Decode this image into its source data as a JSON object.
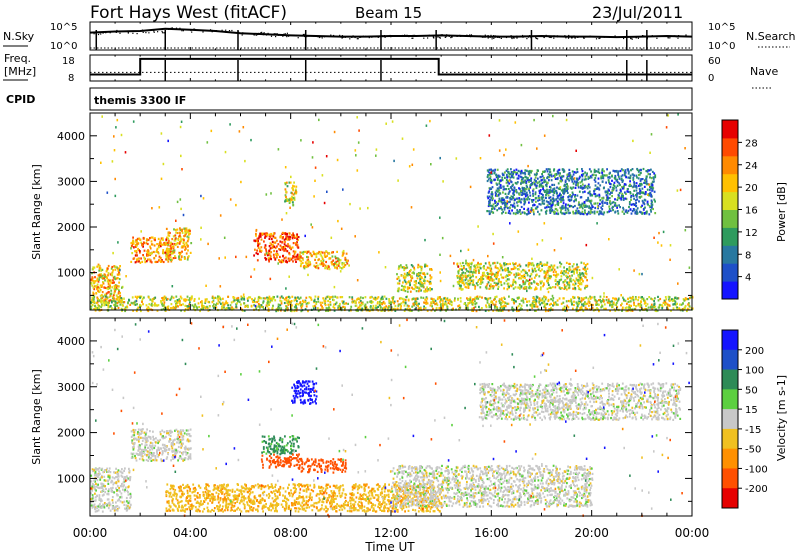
{
  "header": {
    "title": "Fort Hays West (fitACF)",
    "beam": "Beam 15",
    "date": "23/Jul/2011"
  },
  "left_labels": {
    "nsky": "N.Sky",
    "freq_line1": "Freq.",
    "freq_line2": "[MHz]",
    "cpid": "CPID"
  },
  "right_labels": {
    "nsearch": "N.Search",
    "nave": "Nave"
  },
  "cpid_value": "themis 3300 IF",
  "chart_data": [
    {
      "type": "line",
      "panel": "noise",
      "left_ticks": [
        "10^5",
        "10^0"
      ],
      "right_ticks": [
        "10^5",
        "10^0"
      ],
      "x": [
        0,
        1,
        2,
        3,
        4,
        5,
        6,
        7,
        8,
        9,
        10,
        11,
        12,
        13,
        14,
        15,
        16,
        17,
        18,
        19,
        20,
        21,
        22,
        23,
        24
      ],
      "series": [
        {
          "name": "N.Sky",
          "values": [
            3.1,
            3.3,
            3.4,
            3.8,
            3.6,
            3.4,
            3.0,
            2.8,
            2.6,
            2.5,
            2.4,
            2.4,
            2.5,
            2.5,
            2.6,
            2.5,
            2.4,
            2.4,
            2.5,
            2.4,
            2.4,
            2.3,
            2.4,
            2.5,
            2.4
          ]
        }
      ],
      "dips_hours": [
        0.25,
        3.0,
        5.9,
        8.6,
        11.6,
        13.8,
        17.6,
        21.4,
        22.2
      ]
    },
    {
      "type": "line",
      "panel": "frequency",
      "left_ticks": [
        "18",
        "8"
      ],
      "right_ticks": [
        "60",
        "0"
      ],
      "x": [
        0,
        2.0,
        2.0,
        13.9,
        13.9,
        24
      ],
      "series": [
        {
          "name": "Freq.",
          "values": [
            10.5,
            10.5,
            16.5,
            16.5,
            10.5,
            10.5
          ]
        }
      ],
      "nave": 20,
      "dips_hours": [
        3.0,
        5.9,
        8.6,
        11.6,
        21.4,
        22.2
      ]
    },
    {
      "type": "heatmap",
      "panel": "power",
      "ylabel": "Slant Range [km]",
      "yticks": [
        1000,
        2000,
        3000,
        4000
      ],
      "ylim": [
        180,
        4500
      ],
      "xlim": [
        0,
        24
      ],
      "colorbar": {
        "label": "Power [dB]",
        "ticks": [
          "4",
          "8",
          "12",
          "16",
          "20",
          "24",
          "28"
        ],
        "colors": [
          "#1414ff",
          "#1e50c8",
          "#2878a0",
          "#2e9b5e",
          "#70c040",
          "#d8e020",
          "#ffc000",
          "#ff8a00",
          "#ff4a00",
          "#e60000"
        ]
      },
      "regions": [
        {
          "t0": 0.0,
          "t1": 1.2,
          "r0": 350,
          "r1": 1200,
          "level": 6
        },
        {
          "t0": 1.6,
          "t1": 3.3,
          "r0": 1250,
          "r1": 1800,
          "level": 7
        },
        {
          "t0": 3.0,
          "t1": 4.0,
          "r0": 1300,
          "r1": 2000,
          "level": 6
        },
        {
          "t0": 6.5,
          "t1": 8.3,
          "r0": 1250,
          "r1": 1900,
          "level": 8
        },
        {
          "t0": 8.3,
          "t1": 10.3,
          "r0": 1100,
          "r1": 1500,
          "level": 6
        },
        {
          "t0": 7.7,
          "t1": 8.2,
          "r0": 2500,
          "r1": 3000,
          "level": 5
        },
        {
          "t0": 12.2,
          "t1": 13.6,
          "r0": 600,
          "r1": 1200,
          "level": 5
        },
        {
          "t0": 14.6,
          "t1": 19.8,
          "r0": 650,
          "r1": 1250,
          "level": 5
        },
        {
          "t0": 15.8,
          "t1": 22.5,
          "r0": 2300,
          "r1": 3300,
          "level": 2
        },
        {
          "t0": 0.0,
          "t1": 24.0,
          "r0": 180,
          "r1": 500,
          "level": 5
        }
      ]
    },
    {
      "type": "heatmap",
      "panel": "velocity",
      "ylabel": "Slant Range [km]",
      "xlabel": "Time UT",
      "yticks": [
        1000,
        2000,
        3000,
        4000
      ],
      "xticks": [
        "00:00",
        "04:00",
        "08:00",
        "12:00",
        "16:00",
        "20:00",
        "00:00"
      ],
      "ylim": [
        180,
        4500
      ],
      "xlim": [
        0,
        24
      ],
      "colorbar": {
        "label": "Velocity [m s-1]",
        "ticks": [
          "200",
          "100",
          "50",
          "15",
          "-15",
          "-50",
          "-100",
          "-200"
        ],
        "colors": [
          "#1414ff",
          "#1e50c8",
          "#2e8b57",
          "#5cd040",
          "#c8c8c8",
          "#f0c020",
          "#ff9000",
          "#ff5000",
          "#e60000"
        ]
      },
      "regions": [
        {
          "t0": 0.0,
          "t1": 1.6,
          "r0": 300,
          "r1": 1250,
          "velocity": 0
        },
        {
          "t0": 1.6,
          "t1": 4.0,
          "r0": 1400,
          "r1": 2100,
          "velocity": 0
        },
        {
          "t0": 6.8,
          "t1": 8.3,
          "r0": 1550,
          "r1": 1950,
          "velocity": 40
        },
        {
          "t0": 6.8,
          "t1": 8.3,
          "r0": 1250,
          "r1": 1550,
          "velocity": -150
        },
        {
          "t0": 8.3,
          "t1": 10.2,
          "r0": 1150,
          "r1": 1450,
          "velocity": -150
        },
        {
          "t0": 8.0,
          "t1": 9.0,
          "r0": 2650,
          "r1": 3150,
          "velocity": 250
        },
        {
          "t0": 3.0,
          "t1": 14.0,
          "r0": 300,
          "r1": 900,
          "velocity": -40
        },
        {
          "t0": 12.0,
          "t1": 20.0,
          "r0": 400,
          "r1": 1300,
          "velocity": 0
        },
        {
          "t0": 15.5,
          "t1": 23.5,
          "r0": 2300,
          "r1": 3100,
          "velocity": 0
        }
      ]
    }
  ]
}
